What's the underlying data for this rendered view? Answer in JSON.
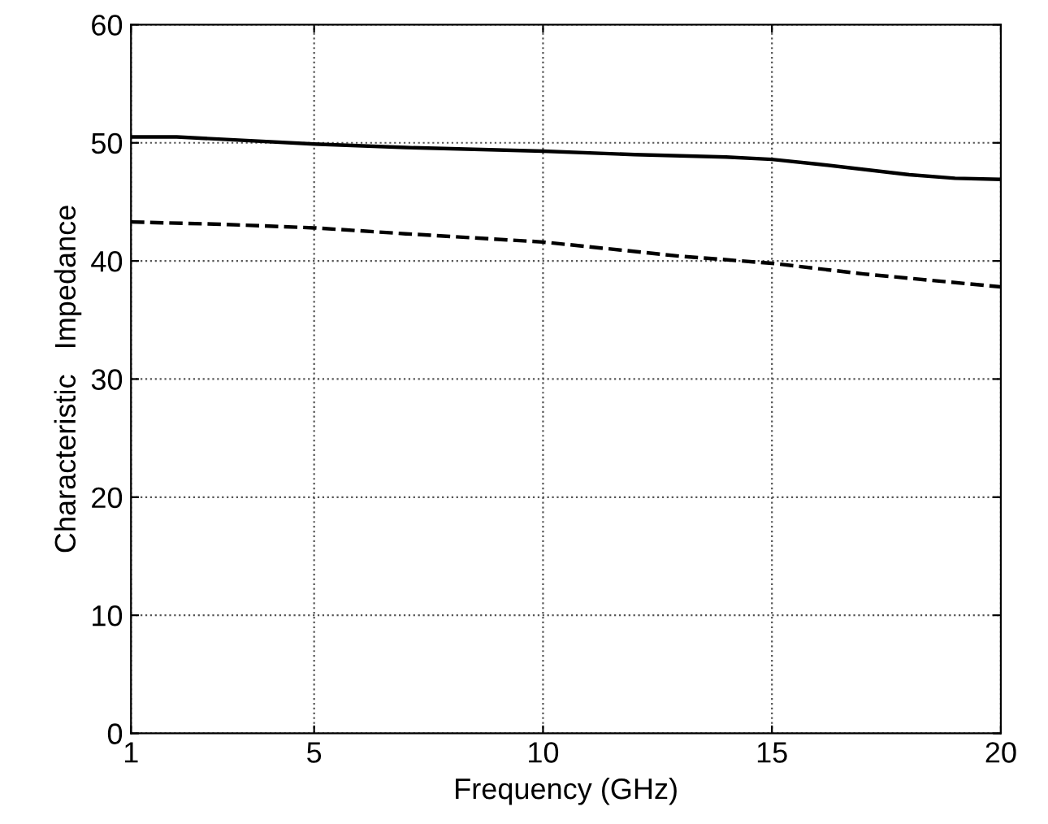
{
  "chart_data": {
    "type": "line",
    "xlabel": "Frequency (GHz)",
    "ylabel": "Characteristic   Impedance",
    "xlim": [
      1,
      20
    ],
    "xticks": [
      1,
      5,
      10,
      15,
      20
    ],
    "ylim": [
      0,
      60
    ],
    "yticks": [
      0,
      10,
      20,
      30,
      40,
      50,
      60
    ],
    "grid": true,
    "marker": "none",
    "series": [
      {
        "color": "#000000",
        "line_style": "solid",
        "x": [
          1,
          2,
          3,
          5,
          7,
          10,
          12,
          14,
          15,
          16,
          18,
          19,
          20
        ],
        "values": [
          50.5,
          50.5,
          50.3,
          49.9,
          49.6,
          49.3,
          49.0,
          48.8,
          48.6,
          48.2,
          47.3,
          47.0,
          46.9
        ]
      },
      {
        "color": "#000000",
        "line_style": "dashed",
        "x": [
          1,
          3,
          5,
          7,
          10,
          13,
          15,
          17,
          20
        ],
        "values": [
          43.3,
          43.1,
          42.8,
          42.3,
          41.6,
          40.4,
          39.8,
          38.9,
          37.8
        ]
      }
    ]
  }
}
